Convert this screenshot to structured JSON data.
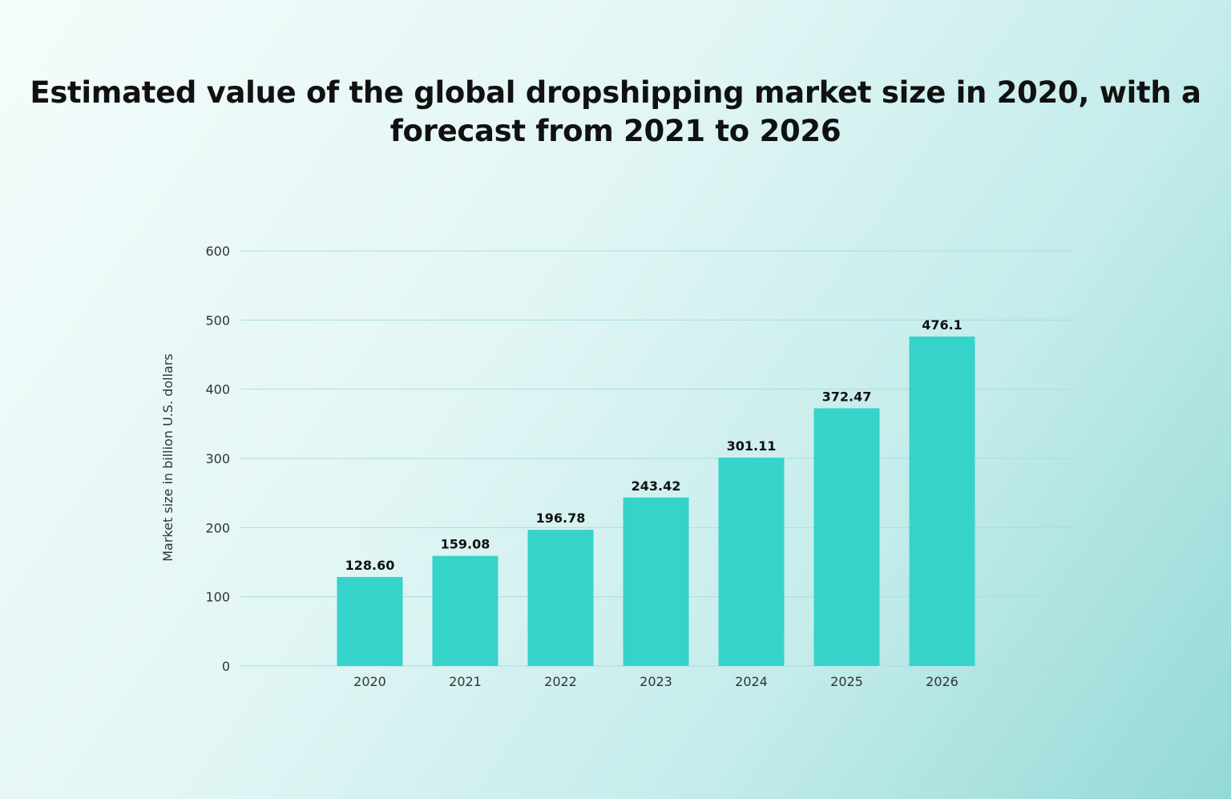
{
  "chart_data": {
    "type": "bar",
    "title": "Estimated value of the global dropshipping market size in 2020, with a forecast from 2021 to 2026",
    "xlabel": "",
    "ylabel": "Market size in billion U.S. dollars",
    "categories": [
      "2020",
      "2021",
      "2022",
      "2023",
      "2024",
      "2025",
      "2026"
    ],
    "values": [
      128.6,
      159.08,
      196.78,
      243.42,
      301.11,
      372.47,
      476.1
    ],
    "data_labels": [
      "128.60",
      "159.08",
      "196.78",
      "243.42",
      "301.11",
      "372.47",
      "476.1"
    ],
    "ylim": [
      0,
      600
    ],
    "yticks": [
      0,
      100,
      200,
      300,
      400,
      500,
      600
    ],
    "grid": true,
    "colors": {
      "bar": "#36d3cb",
      "grid": "#a8dede"
    }
  }
}
